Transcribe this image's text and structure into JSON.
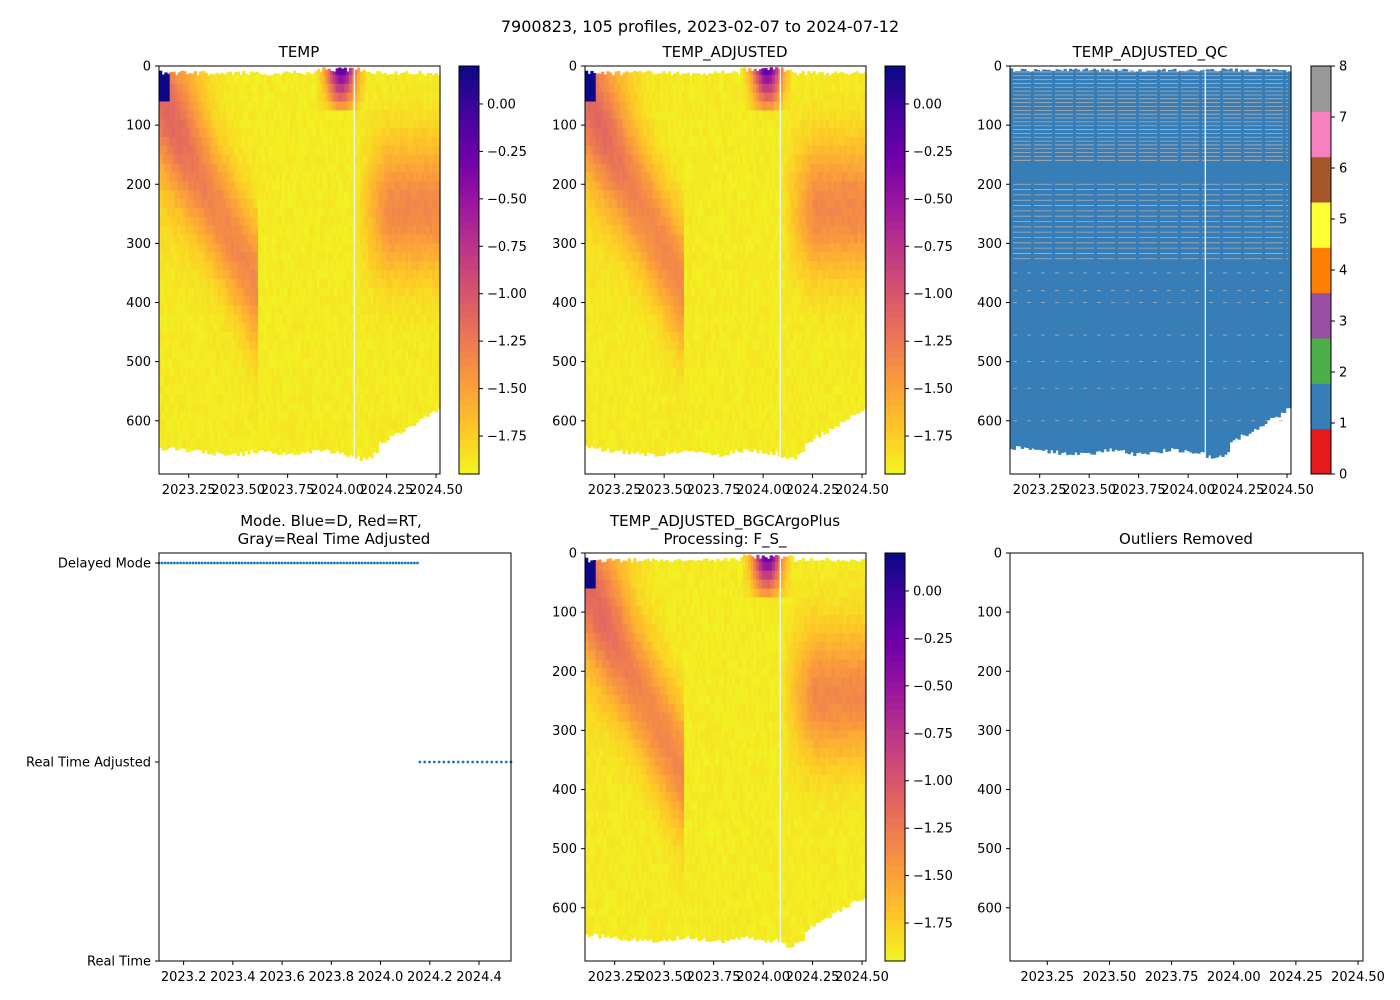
{
  "figure_title": "7900823, 105 profiles, 2023-02-07 to 2024-07-12",
  "colors": {
    "plasma_stops": [
      "#f0f921",
      "#fdca26",
      "#fb9f3a",
      "#ed7953",
      "#d8576b",
      "#bd3786",
      "#9c179e",
      "#7201a8",
      "#46039f",
      "#0d0887"
    ],
    "qc_colors": [
      "#e41a1c",
      "#377eb8",
      "#4daf4a",
      "#984ea3",
      "#ff7f00",
      "#ffff33",
      "#a65628",
      "#f781bf",
      "#999999"
    ],
    "mode_marker": "#1f77b4",
    "qc_flag_line": "#b0b0b0"
  },
  "chart_data": [
    {
      "type": "heatmap",
      "id": "temp",
      "title": "TEMP",
      "x_ticks": [
        "2023.25",
        "2023.50",
        "2023.75",
        "2024.00",
        "2024.25",
        "2024.50"
      ],
      "x_tick_values": [
        2023.25,
        2023.5,
        2023.75,
        2024.0,
        2024.25,
        2024.5
      ],
      "xlim": [
        2023.1,
        2024.52
      ],
      "y_ticks": [
        "0",
        "100",
        "200",
        "300",
        "400",
        "500",
        "600"
      ],
      "y_tick_values": [
        0,
        100,
        200,
        300,
        400,
        500,
        600
      ],
      "ylim": [
        690,
        0
      ],
      "colorbar": {
        "range": [
          -1.95,
          0.2
        ],
        "ticks": [
          "0.00",
          "−0.25",
          "−0.50",
          "−0.75",
          "−1.00",
          "−1.25",
          "−1.50",
          "−1.75"
        ],
        "tick_values": [
          0,
          -0.25,
          -0.5,
          -0.75,
          -1.0,
          -1.25,
          -1.5,
          -1.75
        ]
      }
    },
    {
      "type": "heatmap",
      "id": "temp_adj",
      "title": "TEMP_ADJUSTED",
      "x_ticks": [
        "2023.25",
        "2023.50",
        "2023.75",
        "2024.00",
        "2024.25",
        "2024.50"
      ],
      "x_tick_values": [
        2023.25,
        2023.5,
        2023.75,
        2024.0,
        2024.25,
        2024.5
      ],
      "xlim": [
        2023.1,
        2024.52
      ],
      "y_ticks": [
        "0",
        "100",
        "200",
        "300",
        "400",
        "500",
        "600"
      ],
      "y_tick_values": [
        0,
        100,
        200,
        300,
        400,
        500,
        600
      ],
      "ylim": [
        690,
        0
      ],
      "colorbar": {
        "range": [
          -1.95,
          0.2
        ],
        "ticks": [
          "0.00",
          "−0.25",
          "−0.50",
          "−0.75",
          "−1.00",
          "−1.25",
          "−1.50",
          "−1.75"
        ],
        "tick_values": [
          0,
          -0.25,
          -0.5,
          -0.75,
          -1.0,
          -1.25,
          -1.5,
          -1.75
        ]
      }
    },
    {
      "type": "heatmap",
      "id": "temp_qc",
      "title": "TEMP_ADJUSTED_QC",
      "x_ticks": [
        "2023.25",
        "2023.50",
        "2023.75",
        "2024.00",
        "2024.25",
        "2024.50"
      ],
      "x_tick_values": [
        2023.25,
        2023.5,
        2023.75,
        2024.0,
        2024.25,
        2024.5
      ],
      "xlim": [
        2023.1,
        2024.52
      ],
      "y_ticks": [
        "0",
        "100",
        "200",
        "300",
        "400",
        "500",
        "600"
      ],
      "y_tick_values": [
        0,
        100,
        200,
        300,
        400,
        500,
        600
      ],
      "ylim": [
        690,
        0
      ],
      "dominant_flag": 1,
      "colorbar": {
        "range": [
          0,
          8
        ],
        "ticks": [
          "0",
          "1",
          "2",
          "3",
          "4",
          "5",
          "6",
          "7",
          "8"
        ],
        "tick_values": [
          0,
          1,
          2,
          3,
          4,
          5,
          6,
          7,
          8
        ]
      }
    },
    {
      "type": "scatter",
      "id": "mode",
      "title": "Mode. Blue=D, Red=RT,",
      "title2": "Gray=Real Time Adjusted",
      "x_ticks": [
        "2023.2",
        "2023.4",
        "2023.6",
        "2023.8",
        "2024.0",
        "2024.2",
        "2024.4"
      ],
      "x_tick_values": [
        2023.2,
        2023.4,
        2023.6,
        2023.8,
        2024.0,
        2024.2,
        2024.4
      ],
      "xlim": [
        2023.1,
        2024.53
      ],
      "y_categories": [
        "Delayed Mode",
        "Real Time Adjusted",
        "Real Time"
      ],
      "series": [
        {
          "name": "Delayed Mode",
          "x_range": [
            2023.1,
            2024.15
          ],
          "count": 85
        },
        {
          "name": "Real Time Adjusted",
          "x_range": [
            2024.16,
            2024.53
          ],
          "count": 20
        }
      ]
    },
    {
      "type": "heatmap",
      "id": "temp_bgc",
      "title": "TEMP_ADJUSTED_BGCArgoPlus",
      "title2": "Processing: F_S_",
      "x_ticks": [
        "2023.25",
        "2023.50",
        "2023.75",
        "2024.00",
        "2024.25",
        "2024.50"
      ],
      "x_tick_values": [
        2023.25,
        2023.5,
        2023.75,
        2024.0,
        2024.25,
        2024.5
      ],
      "xlim": [
        2023.1,
        2024.52
      ],
      "y_ticks": [
        "0",
        "100",
        "200",
        "300",
        "400",
        "500",
        "600"
      ],
      "y_tick_values": [
        0,
        100,
        200,
        300,
        400,
        500,
        600
      ],
      "ylim": [
        690,
        0
      ],
      "colorbar": {
        "range": [
          -1.95,
          0.2
        ],
        "ticks": [
          "0.00",
          "−0.25",
          "−0.50",
          "−0.75",
          "−1.00",
          "−1.25",
          "−1.50",
          "−1.75"
        ],
        "tick_values": [
          0,
          -0.25,
          -0.5,
          -0.75,
          -1.0,
          -1.25,
          -1.5,
          -1.75
        ]
      }
    },
    {
      "type": "scatter",
      "id": "outliers",
      "title": "Outliers Removed",
      "x_ticks": [
        "2023.25",
        "2023.50",
        "2023.75",
        "2024.00",
        "2024.25",
        "2024.50"
      ],
      "x_tick_values": [
        2023.25,
        2023.5,
        2023.75,
        2024.0,
        2024.25,
        2024.5
      ],
      "xlim": [
        2023.1,
        2024.52
      ],
      "y_ticks": [
        "0",
        "100",
        "200",
        "300",
        "400",
        "500",
        "600"
      ],
      "y_tick_values": [
        0,
        100,
        200,
        300,
        400,
        500,
        600
      ],
      "ylim": [
        690,
        0
      ],
      "series": []
    }
  ]
}
